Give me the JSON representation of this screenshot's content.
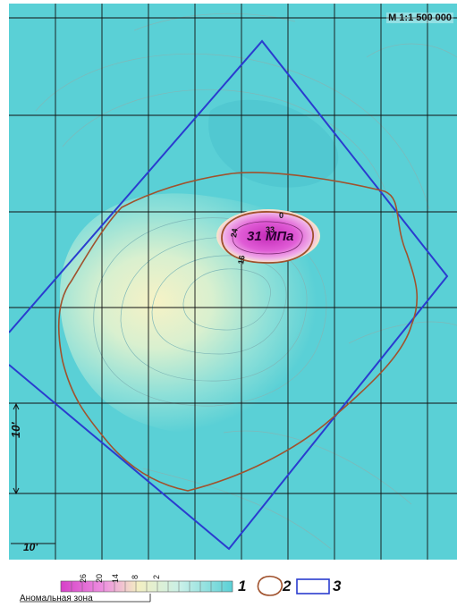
{
  "map": {
    "scale": "M 1:1 500 000",
    "pressure_label": "31 МПа",
    "grid_step_vertical": "10'",
    "grid_step_horizontal": "10'",
    "contour_labels": [
      "0",
      "33",
      "24",
      "16"
    ]
  },
  "legend": {
    "ticks": [
      "26",
      "20",
      "14",
      "8",
      "2"
    ],
    "anomaly_zone_label": "Аномальная зона",
    "items": [
      "1",
      "2",
      "3"
    ],
    "colors": {
      "high": "#d640c8",
      "mid": "#f3efc2",
      "low": "#5ad0d6",
      "outline": "#a0522d",
      "frame": "#2a3ccf"
    }
  }
}
